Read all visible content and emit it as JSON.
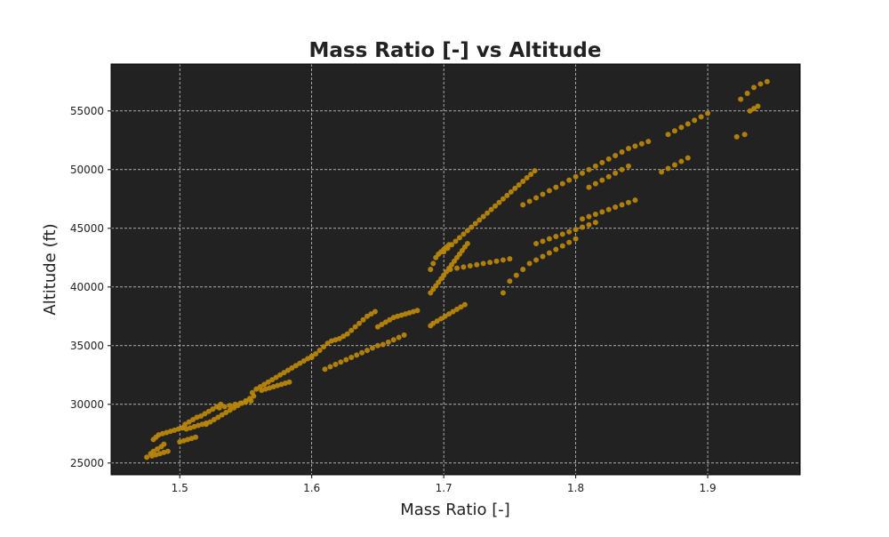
{
  "chart_data": {
    "type": "scatter",
    "title": "Mass Ratio [-] vs Altitude",
    "xlabel": "Mass Ratio [-]",
    "ylabel": "Altitude (ft)",
    "xlim": [
      1.448,
      1.97
    ],
    "ylim": [
      24000,
      59000
    ],
    "x_ticks": [
      1.5,
      1.6,
      1.7,
      1.8,
      1.9
    ],
    "x_tick_labels": [
      "1.5",
      "1.6",
      "1.7",
      "1.8",
      "1.9"
    ],
    "y_ticks": [
      25000,
      30000,
      35000,
      40000,
      45000,
      50000,
      55000
    ],
    "y_tick_labels": [
      "25000",
      "30000",
      "35000",
      "40000",
      "45000",
      "50000",
      "55000"
    ],
    "grid": true,
    "legend": "none",
    "series": [
      {
        "color": "#b8860b",
        "x": [
          1.475,
          1.478,
          1.48,
          1.483,
          1.486,
          1.488,
          1.479,
          1.482,
          1.485,
          1.488,
          1.491,
          1.48,
          1.482,
          1.484,
          1.487,
          1.49,
          1.493,
          1.496,
          1.499,
          1.502,
          1.5,
          1.503,
          1.506,
          1.509,
          1.512,
          1.502,
          1.504,
          1.507,
          1.51,
          1.513,
          1.516,
          1.519,
          1.522,
          1.525,
          1.528,
          1.531,
          1.505,
          1.508,
          1.511,
          1.514,
          1.517,
          1.52,
          1.52,
          1.523,
          1.526,
          1.529,
          1.532,
          1.535,
          1.538,
          1.541,
          1.544,
          1.547,
          1.55,
          1.553,
          1.556,
          1.53,
          1.534,
          1.538,
          1.542,
          1.546,
          1.55,
          1.554,
          1.555,
          1.558,
          1.561,
          1.564,
          1.567,
          1.57,
          1.573,
          1.576,
          1.579,
          1.582,
          1.585,
          1.588,
          1.591,
          1.594,
          1.597,
          1.6,
          1.562,
          1.565,
          1.568,
          1.571,
          1.574,
          1.577,
          1.58,
          1.583,
          1.6,
          1.603,
          1.606,
          1.609,
          1.612,
          1.615,
          1.618,
          1.621,
          1.624,
          1.627,
          1.63,
          1.633,
          1.636,
          1.639,
          1.642,
          1.645,
          1.648,
          1.61,
          1.614,
          1.618,
          1.622,
          1.626,
          1.63,
          1.634,
          1.638,
          1.642,
          1.646,
          1.65,
          1.65,
          1.653,
          1.656,
          1.659,
          1.662,
          1.665,
          1.668,
          1.671,
          1.674,
          1.677,
          1.68,
          1.654,
          1.658,
          1.662,
          1.666,
          1.67,
          1.69,
          1.692,
          1.694,
          1.696,
          1.698,
          1.7,
          1.702,
          1.704,
          1.706,
          1.708,
          1.71,
          1.712,
          1.714,
          1.716,
          1.718,
          1.69,
          1.692,
          1.695,
          1.698,
          1.701,
          1.704,
          1.707,
          1.71,
          1.713,
          1.716,
          1.69,
          1.692,
          1.694,
          1.696,
          1.698,
          1.7,
          1.702,
          1.704,
          1.7,
          1.703,
          1.706,
          1.709,
          1.712,
          1.715,
          1.718,
          1.721,
          1.724,
          1.727,
          1.73,
          1.733,
          1.736,
          1.739,
          1.742,
          1.745,
          1.748,
          1.751,
          1.754,
          1.757,
          1.76,
          1.763,
          1.766,
          1.769,
          1.705,
          1.71,
          1.715,
          1.72,
          1.725,
          1.73,
          1.735,
          1.74,
          1.745,
          1.75,
          1.76,
          1.765,
          1.77,
          1.775,
          1.78,
          1.785,
          1.79,
          1.795,
          1.8,
          1.805,
          1.81,
          1.815,
          1.82,
          1.825,
          1.83,
          1.835,
          1.84,
          1.845,
          1.85,
          1.855,
          1.77,
          1.775,
          1.78,
          1.785,
          1.79,
          1.795,
          1.8,
          1.805,
          1.81,
          1.815,
          1.745,
          1.75,
          1.755,
          1.76,
          1.765,
          1.77,
          1.775,
          1.78,
          1.785,
          1.79,
          1.795,
          1.8,
          1.805,
          1.81,
          1.815,
          1.82,
          1.825,
          1.83,
          1.835,
          1.84,
          1.845,
          1.81,
          1.815,
          1.82,
          1.825,
          1.83,
          1.835,
          1.84,
          1.87,
          1.875,
          1.88,
          1.885,
          1.89,
          1.895,
          1.9,
          1.865,
          1.87,
          1.875,
          1.88,
          1.885,
          1.925,
          1.93,
          1.935,
          1.94,
          1.945,
          1.922,
          1.928,
          1.932,
          1.935,
          1.938
        ],
        "y": [
          25500,
          25800,
          26000,
          26200,
          26400,
          26600,
          25600,
          25700,
          25800,
          25900,
          26000,
          27000,
          27200,
          27400,
          27500,
          27600,
          27700,
          27800,
          27900,
          28000,
          26800,
          26900,
          27000,
          27100,
          27200,
          28000,
          28300,
          28500,
          28700,
          28900,
          29000,
          29200,
          29400,
          29600,
          29800,
          30000,
          27900,
          28000,
          28100,
          28200,
          28300,
          28400,
          28300,
          28500,
          28700,
          28900,
          29100,
          29300,
          29500,
          29700,
          29900,
          30100,
          30300,
          30500,
          30700,
          29700,
          29800,
          29900,
          30000,
          30100,
          30200,
          30300,
          31000,
          31300,
          31500,
          31700,
          31900,
          32100,
          32300,
          32500,
          32700,
          32900,
          33100,
          33300,
          33500,
          33700,
          33900,
          34100,
          31200,
          31300,
          31400,
          31500,
          31600,
          31700,
          31800,
          31900,
          34000,
          34300,
          34600,
          34900,
          35200,
          35400,
          35500,
          35600,
          35800,
          36000,
          36300,
          36600,
          36900,
          37200,
          37500,
          37700,
          37900,
          33000,
          33200,
          33400,
          33600,
          33800,
          34000,
          34200,
          34400,
          34600,
          34800,
          35000,
          36600,
          36800,
          37000,
          37200,
          37400,
          37500,
          37600,
          37700,
          37800,
          37900,
          38000,
          35100,
          35300,
          35500,
          35700,
          35900,
          39500,
          39800,
          40100,
          40400,
          40700,
          41000,
          41300,
          41600,
          41900,
          42200,
          42500,
          42800,
          43100,
          43400,
          43700,
          36700,
          36900,
          37100,
          37300,
          37500,
          37700,
          37900,
          38100,
          38300,
          38500,
          41500,
          42000,
          42500,
          42800,
          43000,
          43200,
          43400,
          43600,
          43000,
          43300,
          43600,
          43900,
          44200,
          44500,
          44800,
          45100,
          45400,
          45700,
          46000,
          46300,
          46600,
          46900,
          47200,
          47500,
          47800,
          48100,
          48400,
          48700,
          49000,
          49300,
          49600,
          49900,
          41500,
          41600,
          41700,
          41800,
          41900,
          42000,
          42100,
          42200,
          42300,
          42400,
          47000,
          47300,
          47600,
          47900,
          48200,
          48500,
          48800,
          49100,
          49400,
          49700,
          50000,
          50300,
          50600,
          50900,
          51200,
          51500,
          51800,
          52000,
          52200,
          52400,
          43700,
          43900,
          44100,
          44300,
          44500,
          44700,
          44900,
          45100,
          45300,
          45500,
          39500,
          40500,
          41000,
          41500,
          42000,
          42300,
          42600,
          42900,
          43200,
          43500,
          43800,
          44100,
          45800,
          46000,
          46200,
          46400,
          46600,
          46800,
          47000,
          47200,
          47400,
          48500,
          48800,
          49100,
          49400,
          49700,
          50000,
          50300,
          53000,
          53300,
          53600,
          53900,
          54200,
          54500,
          54800,
          49800,
          50100,
          50400,
          50700,
          51000,
          56000,
          56500,
          57000,
          57300,
          57500,
          52800,
          53000,
          55000,
          55200,
          55400
        ]
      }
    ]
  }
}
